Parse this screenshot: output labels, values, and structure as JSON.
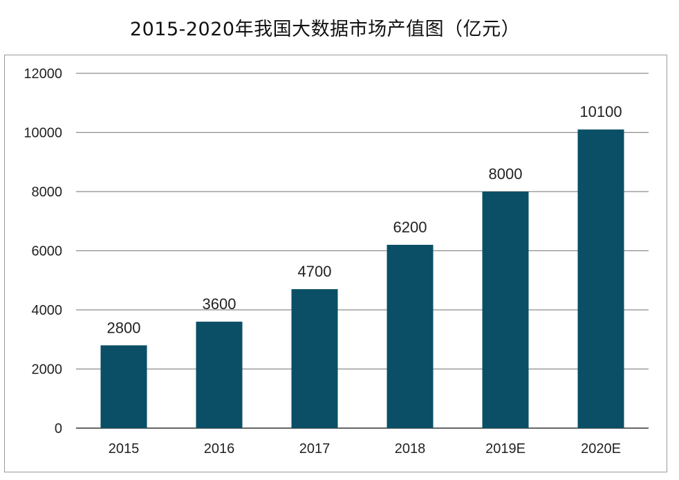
{
  "chart_data": {
    "type": "bar",
    "title": "2015-2020年我国大数据市场产值图（亿元）",
    "categories": [
      "2015",
      "2016",
      "2017",
      "2018",
      "2019E",
      "2020E"
    ],
    "values": [
      2800,
      3600,
      4700,
      6200,
      8000,
      10100
    ],
    "ylim": [
      0,
      12000
    ],
    "yticks": [
      0,
      2000,
      4000,
      6000,
      8000,
      10000,
      12000
    ],
    "bar_color": "#0a4f66",
    "grid": true,
    "legend": "none"
  }
}
